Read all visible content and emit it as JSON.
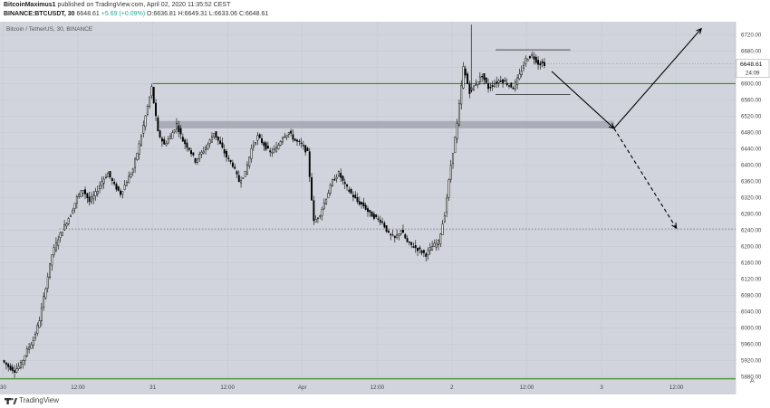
{
  "header": {
    "author": "BitcoinMaximus1",
    "published": "published on TradingView.com, April 02, 2020 11:35:52 CEST",
    "symbol": "BINANCE:BTCUSDT, 30",
    "last": "6648.61",
    "change": "+5.69 (+0.09%)",
    "ohlc": "O:6636.81 H:6649.31 L:6633.06 C:6648.61"
  },
  "footer": {
    "brand": "TradingView",
    "axis_mode": "A"
  },
  "colors": {
    "background": "#d1d4dc",
    "up_candle": "#ffffff",
    "down_candle": "#000000",
    "support_line": "#3a8a1e",
    "zone": "#9a9da6",
    "arrow": "#000000"
  },
  "chart_data": {
    "type": "candlestick",
    "title": "Bitcoin / TetherUS, 30, BINANCE",
    "y_ticks": [
      5880,
      5920,
      5960,
      6000,
      6040,
      6080,
      6120,
      6160,
      6200,
      6240,
      6280,
      6320,
      6360,
      6400,
      6440,
      6480,
      6520,
      6560,
      6600,
      6640,
      6680,
      6720
    ],
    "y_tick_labels": [
      "5880.00",
      "5920.00",
      "5960.00",
      "6000.00",
      "6040.00",
      "6080.00",
      "6120.00",
      "6160.00",
      "6200.00",
      "6240.00",
      "6280.00",
      "6320.00",
      "6360.00",
      "6400.00",
      "6440.00",
      "6480.00",
      "6520.00",
      "6560.00",
      "6600.00",
      "6640.00",
      "6680.00",
      "6720.00"
    ],
    "ylim": [
      5872,
      6752
    ],
    "x_labels": [
      {
        "t": 0,
        "label": "30"
      },
      {
        "t": 12,
        "label": "12:00"
      },
      {
        "t": 24,
        "label": "31"
      },
      {
        "t": 36,
        "label": "12:00"
      },
      {
        "t": 48,
        "label": "Apr"
      },
      {
        "t": 60,
        "label": "12:00"
      },
      {
        "t": 72,
        "label": "2"
      },
      {
        "t": 84,
        "label": "12:00"
      },
      {
        "t": 96,
        "label": "3"
      },
      {
        "t": 108,
        "label": "12:00"
      }
    ],
    "xlim": [
      -0.5,
      117.5
    ],
    "last_price": {
      "value": 6648.61,
      "label": "6648.61",
      "countdown": "24:09"
    },
    "price_path": [
      [
        0,
        5920
      ],
      [
        1,
        5905
      ],
      [
        2,
        5895
      ],
      [
        3,
        5910
      ],
      [
        4,
        5945
      ],
      [
        5,
        5970
      ],
      [
        6,
        6020
      ],
      [
        7,
        6100
      ],
      [
        8,
        6180
      ],
      [
        9,
        6220
      ],
      [
        10,
        6250
      ],
      [
        11,
        6280
      ],
      [
        12,
        6320
      ],
      [
        13,
        6340
      ],
      [
        14,
        6310
      ],
      [
        15,
        6330
      ],
      [
        16,
        6360
      ],
      [
        17,
        6380
      ],
      [
        18,
        6350
      ],
      [
        19,
        6330
      ],
      [
        20,
        6360
      ],
      [
        21,
        6390
      ],
      [
        22,
        6450
      ],
      [
        23,
        6520
      ],
      [
        24,
        6590
      ],
      [
        25,
        6480
      ],
      [
        26,
        6450
      ],
      [
        27,
        6470
      ],
      [
        28,
        6500
      ],
      [
        29,
        6460
      ],
      [
        30,
        6440
      ],
      [
        31,
        6410
      ],
      [
        32,
        6430
      ],
      [
        33,
        6450
      ],
      [
        34,
        6480
      ],
      [
        35,
        6450
      ],
      [
        36,
        6420
      ],
      [
        37,
        6400
      ],
      [
        38,
        6360
      ],
      [
        39,
        6380
      ],
      [
        40,
        6440
      ],
      [
        41,
        6470
      ],
      [
        42,
        6450
      ],
      [
        43,
        6430
      ],
      [
        44,
        6440
      ],
      [
        45,
        6470
      ],
      [
        46,
        6480
      ],
      [
        47,
        6460
      ],
      [
        48,
        6450
      ],
      [
        49,
        6430
      ],
      [
        50,
        6260
      ],
      [
        51,
        6280
      ],
      [
        52,
        6320
      ],
      [
        53,
        6360
      ],
      [
        54,
        6380
      ],
      [
        55,
        6350
      ],
      [
        56,
        6330
      ],
      [
        57,
        6310
      ],
      [
        58,
        6300
      ],
      [
        59,
        6280
      ],
      [
        60,
        6270
      ],
      [
        61,
        6260
      ],
      [
        62,
        6230
      ],
      [
        63,
        6220
      ],
      [
        64,
        6240
      ],
      [
        65,
        6210
      ],
      [
        66,
        6200
      ],
      [
        67,
        6190
      ],
      [
        68,
        6180
      ],
      [
        69,
        6200
      ],
      [
        70,
        6210
      ],
      [
        71,
        6280
      ],
      [
        72,
        6400
      ],
      [
        73,
        6500
      ],
      [
        74,
        6640
      ],
      [
        75,
        6580
      ],
      [
        76,
        6600
      ],
      [
        77,
        6620
      ],
      [
        78,
        6590
      ],
      [
        79,
        6600
      ],
      [
        80,
        6610
      ],
      [
        81,
        6600
      ],
      [
        82,
        6590
      ],
      [
        83,
        6620
      ],
      [
        84,
        6660
      ],
      [
        85,
        6670
      ],
      [
        86,
        6650
      ],
      [
        87,
        6648.61
      ]
    ],
    "lines": {
      "upper_support": 6600,
      "lower_support": 5875,
      "target_dotted": 6243,
      "zone": [
        6490,
        6508
      ],
      "zone_t": [
        25,
        98
      ],
      "range_top": 6683,
      "range_bottom": 6573,
      "range_t": [
        79,
        91
      ]
    },
    "arrows": [
      {
        "from": [
          88,
          6630
        ],
        "to": [
          98,
          6490
        ],
        "style": "solid"
      },
      {
        "from": [
          98,
          6490
        ],
        "to": [
          112,
          6735
        ],
        "style": "solid"
      },
      {
        "from": [
          98,
          6490
        ],
        "to": [
          108,
          6245
        ],
        "style": "dashed"
      }
    ]
  }
}
